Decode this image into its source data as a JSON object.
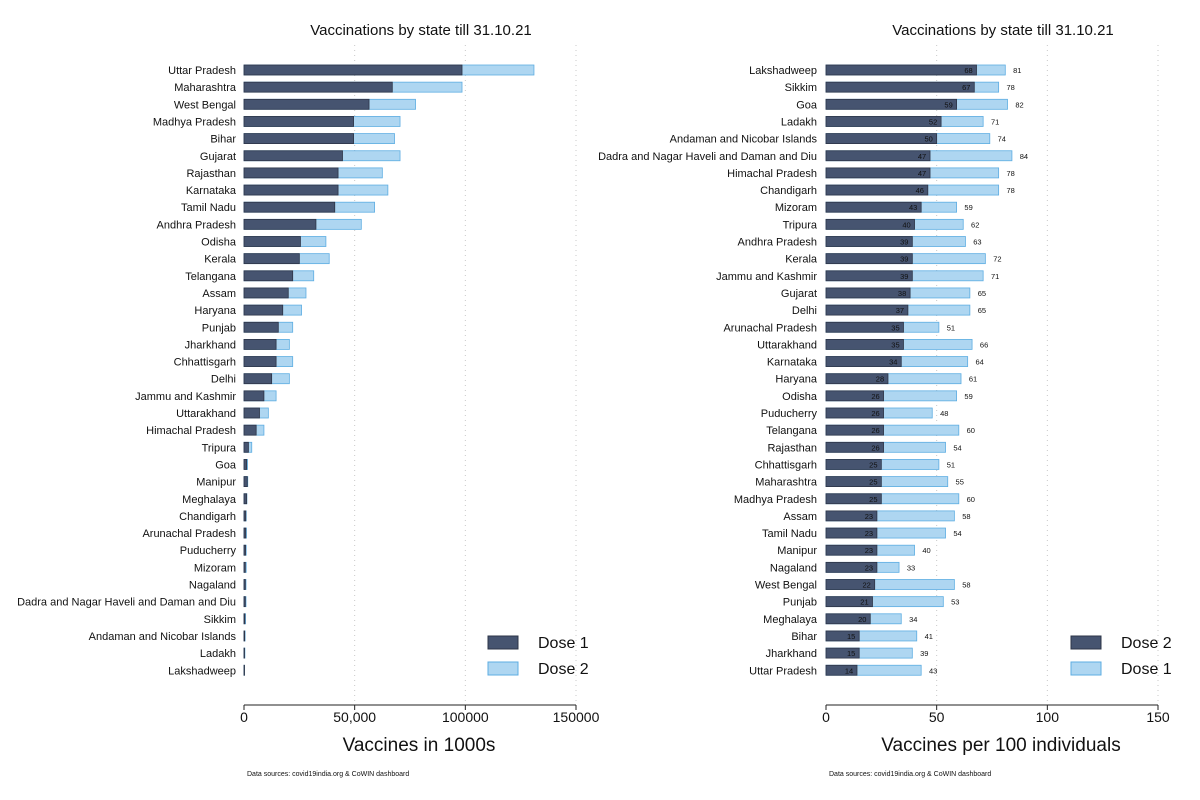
{
  "colors": {
    "dose_dark": "#465470",
    "dose_dark_stroke": "#2c3447",
    "dose_light": "#aed6f1",
    "dose_light_stroke": "#5dade2",
    "grid": "#c8c8c8"
  },
  "chart_data": [
    {
      "type": "bar",
      "orientation": "horizontal",
      "stacked": "overlay",
      "title": "Vaccinations by state till 31.10.21",
      "xlabel": "Vaccines in 1000s",
      "xlim": [
        0,
        150000
      ],
      "xticks": [
        0,
        50000,
        100000,
        150000
      ],
      "xtick_labels": [
        "0",
        "50,000",
        "100000",
        "150000"
      ],
      "source": "Data sources: covid19india.org & CoWIN dashboard",
      "legend": [
        "Dose 1",
        "Dose 2"
      ],
      "categories": [
        "Uttar Pradesh",
        "Maharashtra",
        "West Bengal",
        "Madhya Pradesh",
        "Bihar",
        "Gujarat",
        "Rajasthan",
        "Karnataka",
        "Tamil Nadu",
        "Andhra Pradesh",
        "Odisha",
        "Kerala",
        "Telangana",
        "Assam",
        "Haryana",
        "Punjab",
        "Jharkhand",
        "Chhattisgarh",
        "Delhi",
        "Jammu and Kashmir",
        "Uttarakhand",
        "Himachal Pradesh",
        "Tripura",
        "Goa",
        "Manipur",
        "Meghalaya",
        "Chandigarh",
        "Arunachal Pradesh",
        "Puducherry",
        "Mizoram",
        "Nagaland",
        "Dadra and Nagar Haveli and Daman and Diu",
        "Sikkim",
        "Andaman and Nicobar Islands",
        "Ladakh",
        "Lakshadweep"
      ],
      "series": [
        {
          "name": "Dose 1",
          "values": [
            98500,
            67000,
            56500,
            49500,
            49500,
            44500,
            42500,
            42500,
            41000,
            32500,
            25500,
            25000,
            22000,
            20000,
            17500,
            15500,
            14500,
            14500,
            12500,
            9000,
            7000,
            5500,
            2000,
            1200,
            1500,
            1200,
            800,
            800,
            700,
            600,
            600,
            600,
            400,
            300,
            200,
            100
          ]
        },
        {
          "name": "Dose 2",
          "values": [
            131000,
            98500,
            77500,
            70500,
            68000,
            70500,
            62500,
            65000,
            59000,
            53000,
            37000,
            38500,
            31500,
            28000,
            26000,
            22000,
            20500,
            22000,
            20500,
            14500,
            11000,
            9000,
            3500,
            1600,
            1700,
            1300,
            1000,
            1100,
            1000,
            1000,
            900,
            900,
            700,
            500,
            400,
            150
          ]
        }
      ]
    },
    {
      "type": "bar",
      "orientation": "horizontal",
      "stacked": "overlay",
      "title": "Vaccinations by state till 31.10.21",
      "xlabel": "Vaccines per 100 individuals",
      "xlim": [
        0,
        150
      ],
      "xticks": [
        0,
        50,
        100,
        150
      ],
      "xtick_labels": [
        "0",
        "50",
        "100",
        "150"
      ],
      "source": "Data sources: covid19india.org & CoWIN dashboard",
      "legend": [
        "Dose 2",
        "Dose 1"
      ],
      "categories": [
        "Lakshadweep",
        "Sikkim",
        "Goa",
        "Ladakh",
        "Andaman and Nicobar Islands",
        "Dadra and Nagar Haveli and Daman and Diu",
        "Himachal Pradesh",
        "Chandigarh",
        "Mizoram",
        "Tripura",
        "Andhra Pradesh",
        "Kerala",
        "Jammu and Kashmir",
        "Gujarat",
        "Delhi",
        "Arunachal Pradesh",
        "Uttarakhand",
        "Karnataka",
        "Haryana",
        "Odisha",
        "Puducherry",
        "Telangana",
        "Rajasthan",
        "Chhattisgarh",
        "Maharashtra",
        "Madhya Pradesh",
        "Assam",
        "Tamil Nadu",
        "Manipur",
        "Nagaland",
        "West Bengal",
        "Punjab",
        "Meghalaya",
        "Bihar",
        "Jharkhand",
        "Uttar Pradesh"
      ],
      "series": [
        {
          "name": "Dose 2",
          "values": [
            68,
            67,
            59,
            52,
            50,
            47,
            47,
            46,
            43,
            40,
            39,
            39,
            39,
            38,
            37,
            35,
            35,
            34,
            28,
            26,
            26,
            26,
            26,
            25,
            25,
            25,
            23,
            23,
            23,
            23,
            22,
            21,
            20,
            15,
            15,
            14
          ]
        },
        {
          "name": "Dose 1",
          "values": [
            81,
            78,
            82,
            71,
            74,
            84,
            78,
            78,
            59,
            62,
            63,
            72,
            71,
            65,
            65,
            51,
            66,
            64,
            61,
            59,
            48,
            60,
            54,
            51,
            55,
            60,
            58,
            54,
            40,
            33,
            58,
            53,
            34,
            41,
            39,
            43
          ]
        }
      ]
    }
  ]
}
